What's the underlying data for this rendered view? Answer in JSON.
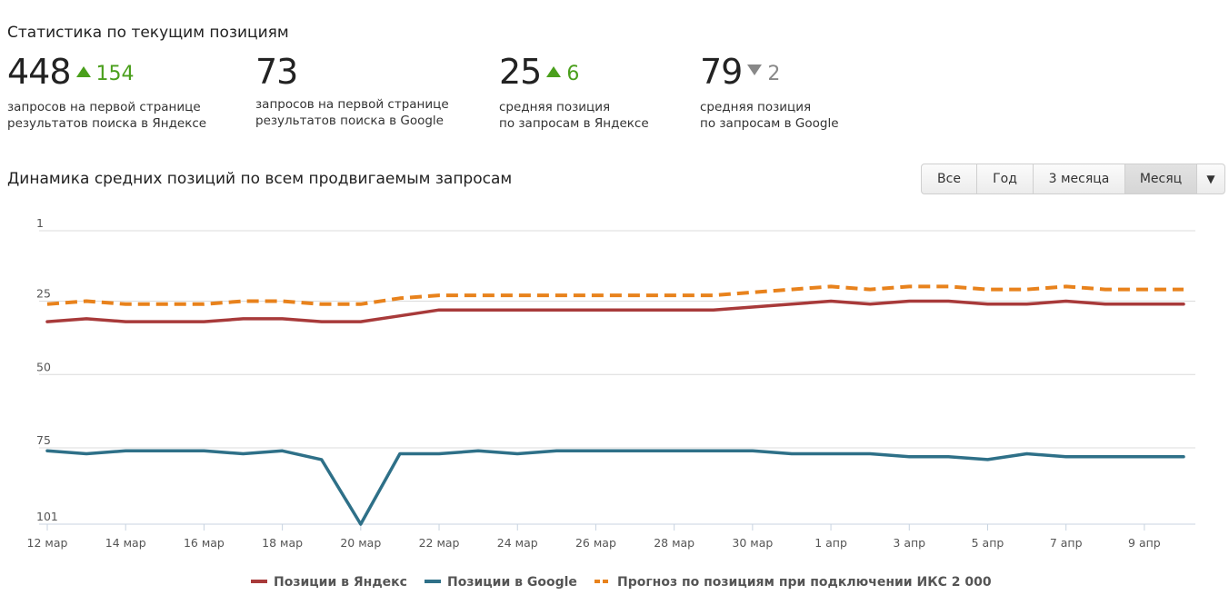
{
  "stats_title": "Статистика по текущим позициям",
  "stats": [
    {
      "value": "448",
      "delta": "154",
      "direction": "up",
      "desc_line1": "запросов на первой странице",
      "desc_line2": "результатов поиска в Яндексе"
    },
    {
      "value": "73",
      "delta": "",
      "direction": "none",
      "desc_line1": "запросов на первой странице",
      "desc_line2": "результатов поиска в Google"
    },
    {
      "value": "25",
      "delta": "6",
      "direction": "up",
      "desc_line1": "средняя позиция",
      "desc_line2": "по запросам в Яндексе"
    },
    {
      "value": "79",
      "delta": "2",
      "direction": "down",
      "desc_line1": "средняя позиция",
      "desc_line2": "по запросам в Google"
    }
  ],
  "chart_title": "Динамика средних позиций по всем продвигаемым запросам",
  "range_buttons": [
    {
      "label": "Все"
    },
    {
      "label": "Год"
    },
    {
      "label": "3 месяца"
    },
    {
      "label": "Месяц",
      "active": true
    }
  ],
  "range_caret": "▼",
  "colors": {
    "yandex": "#a83a3a",
    "google": "#2e7088",
    "forecast": "#e8821c",
    "up": "#4a9f1c",
    "down": "#888888"
  },
  "chart_data": {
    "type": "line",
    "title": "Динамика средних позиций по всем продвигаемым запросам",
    "y_inverted": true,
    "ylim": [
      1,
      101
    ],
    "y_ticks": [
      1,
      25,
      50,
      75,
      101
    ],
    "x_tick_labels": [
      "12 мар",
      "14 мар",
      "16 мар",
      "18 мар",
      "20 мар",
      "22 мар",
      "24 мар",
      "26 мар",
      "28 мар",
      "30 мар",
      "1 апр",
      "3 апр",
      "5 апр",
      "7 апр",
      "9 апр"
    ],
    "x": [
      "12 мар",
      "13 мар",
      "14 мар",
      "15 мар",
      "16 мар",
      "17 мар",
      "18 мар",
      "19 мар",
      "20 мар",
      "21 мар",
      "22 мар",
      "23 мар",
      "24 мар",
      "25 мар",
      "26 мар",
      "27 мар",
      "28 мар",
      "29 мар",
      "30 мар",
      "31 мар",
      "1 апр",
      "2 апр",
      "3 апр",
      "4 апр",
      "5 апр",
      "6 апр",
      "7 апр",
      "8 апр",
      "9 апр",
      "10 апр"
    ],
    "series": [
      {
        "name": "Позиции в Яндекс",
        "color": "#a83a3a",
        "style": "solid",
        "values": [
          32,
          31,
          32,
          32,
          32,
          31,
          31,
          32,
          32,
          30,
          28,
          28,
          28,
          28,
          28,
          28,
          28,
          28,
          27,
          26,
          25,
          26,
          25,
          25,
          26,
          26,
          25,
          26,
          26,
          26
        ]
      },
      {
        "name": "Позиции в Google",
        "color": "#2e7088",
        "style": "solid",
        "values": [
          76,
          77,
          76,
          76,
          76,
          77,
          76,
          79,
          101,
          77,
          77,
          76,
          77,
          76,
          76,
          76,
          76,
          76,
          76,
          77,
          77,
          77,
          78,
          78,
          79,
          77,
          78,
          78,
          78,
          78
        ]
      },
      {
        "name": "Прогноз по позициям при подключении ИКС 2 000",
        "color": "#e8821c",
        "style": "dashed",
        "values": [
          26,
          25,
          26,
          26,
          26,
          25,
          25,
          26,
          26,
          24,
          23,
          23,
          23,
          23,
          23,
          23,
          23,
          23,
          22,
          21,
          20,
          21,
          20,
          20,
          21,
          21,
          20,
          21,
          21,
          21
        ]
      }
    ]
  }
}
